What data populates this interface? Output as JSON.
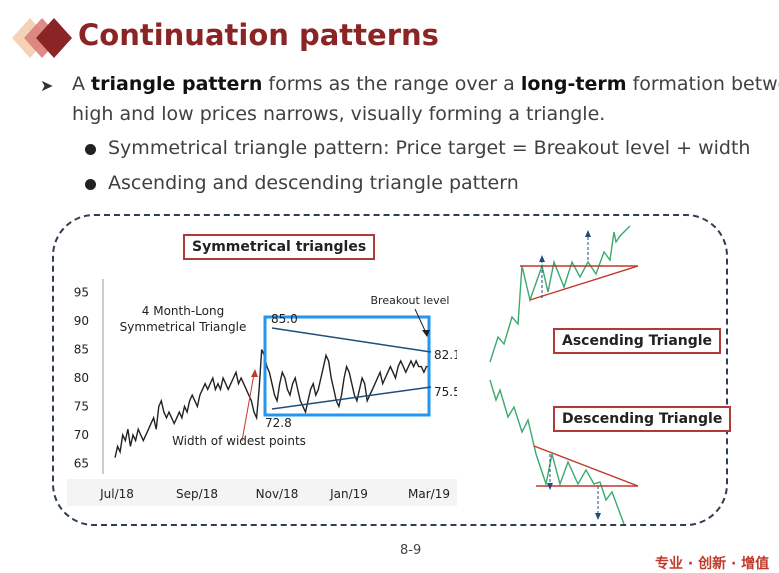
{
  "title": "Continuation patterns",
  "bullet1": {
    "l1_a": "A ",
    "l1_b": "triangle pattern",
    "l1_c": " forms as the range over a ",
    "l1_d": "long-term",
    "l1_e": " formation between",
    "l2": "high and low prices narrows, visually forming a triangle."
  },
  "sub_bullets": [
    "Symmetrical triangle pattern: Price target = Breakout level + width",
    "Ascending and descending triangle pattern"
  ],
  "figure": {
    "symmetrical_label": "Symmetrical triangles",
    "ascending_label": "Ascending Triangle",
    "descending_label": "Descending Triangle"
  },
  "chart_data": {
    "type": "line",
    "title": "4 Month-Long Symmetrical Triangle",
    "y_ticks": [
      "95",
      "90",
      "85",
      "80",
      "75",
      "70",
      "65"
    ],
    "x_ticks": [
      "Jul/18",
      "Sep/18",
      "Nov/18",
      "Jan/19",
      "Mar/19"
    ],
    "ylim": [
      64,
      96
    ],
    "annotations": {
      "breakout": "Breakout level",
      "width": "Width of widest points",
      "v_high": "85.0",
      "v_low": "72.8",
      "v_breakout": "82.1",
      "v_target": "75.5"
    },
    "series": [
      {
        "x": [
          0,
          2,
          4,
          6,
          8,
          10,
          12,
          14,
          16,
          18,
          20,
          22,
          24,
          26,
          28,
          30,
          32,
          34,
          36,
          38,
          40,
          42,
          44,
          46,
          48,
          50,
          52,
          54,
          56,
          58,
          60,
          62,
          64,
          66,
          68,
          70,
          72,
          74,
          76,
          78,
          80,
          82,
          84,
          86,
          88,
          90,
          92,
          94,
          96,
          98,
          100,
          102,
          104,
          106,
          108,
          110,
          112,
          114,
          116,
          118,
          120,
          122,
          124,
          126,
          128,
          130,
          132,
          134,
          136,
          138,
          140,
          142,
          144,
          146,
          148,
          150,
          152,
          154,
          156,
          158,
          160,
          162,
          164,
          166,
          168,
          170,
          172,
          174,
          176,
          178,
          180,
          182,
          184,
          186,
          188,
          190,
          192,
          194,
          196,
          198,
          200,
          202,
          204,
          206,
          208,
          210,
          212,
          214,
          216,
          218,
          220,
          222,
          224,
          226,
          228,
          230,
          232,
          234,
          236,
          238,
          240,
          242,
          244
        ],
        "values": [
          66,
          68,
          67,
          70,
          69,
          71,
          68,
          70,
          69,
          71,
          70,
          69,
          70,
          71,
          72,
          73,
          71,
          75,
          76,
          74,
          73,
          74,
          73,
          72,
          73,
          74,
          73,
          75,
          74,
          76,
          77,
          76,
          75,
          77,
          78,
          79,
          78,
          79,
          80,
          78,
          79,
          78,
          80,
          79,
          78,
          79,
          80,
          81,
          79,
          80,
          79,
          78,
          77,
          76,
          74,
          73,
          78,
          85,
          84,
          82,
          81,
          79,
          77,
          76,
          79,
          81,
          80,
          78,
          77,
          79,
          80,
          78,
          76,
          75,
          74,
          76,
          78,
          79,
          77,
          78,
          80,
          82,
          84,
          83,
          80,
          78,
          76,
          75,
          77,
          80,
          82,
          81,
          79,
          77,
          76,
          78,
          80,
          79,
          76,
          77,
          78,
          79,
          80,
          81,
          79,
          80,
          81,
          82,
          81,
          80,
          82,
          83,
          82,
          81,
          82,
          83,
          82,
          83,
          82,
          82,
          81,
          82,
          82
        ]
      }
    ]
  },
  "page_number": "8-9",
  "footer": "专业 · 创新 · 增值"
}
